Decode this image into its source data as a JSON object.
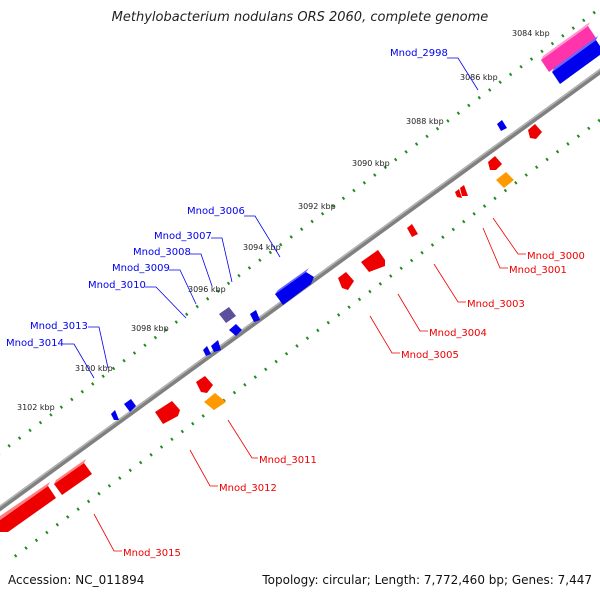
{
  "title": "Methylobacterium nodulans ORS 2060, complete genome",
  "accession": "Accession: NC_011894",
  "summary": "Topology: circular; Length: 7,772,460 bp; Genes: 7,447",
  "colors": {
    "forward": "#0000ee",
    "reverse": "#ee0000",
    "orange": "#ff9900",
    "pink": "#ff33aa",
    "purple": "#5c4f9e",
    "backbone": "#808080",
    "tick": "#228b22"
  },
  "ticks": [
    "3084 kbp",
    "3086 kbp",
    "3088 kbp",
    "3090 kbp",
    "3092 kbp",
    "3094 kbp",
    "3096 kbp",
    "3098 kbp",
    "3100 kbp",
    "3102 kbp"
  ],
  "genes_top": [
    "Mnod_2998",
    "Mnod_3006",
    "Mnod_3007",
    "Mnod_3008",
    "Mnod_3009",
    "Mnod_3010",
    "Mnod_3013",
    "Mnod_3014"
  ],
  "genes_bottom": [
    "Mnod_3000",
    "Mnod_3001",
    "Mnod_3003",
    "Mnod_3004",
    "Mnod_3005",
    "Mnod_3011",
    "Mnod_3012",
    "Mnod_3015"
  ]
}
